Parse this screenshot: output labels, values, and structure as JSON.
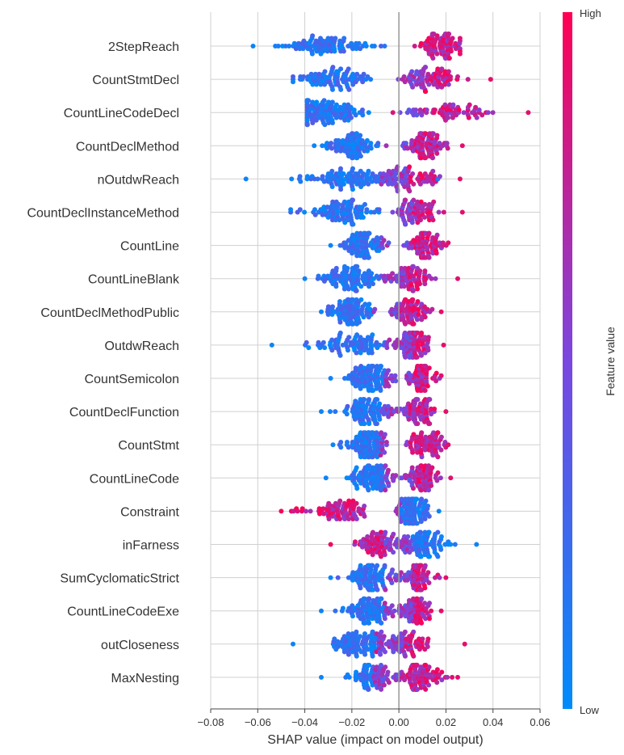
{
  "chart_data": {
    "type": "scatter",
    "subtype": "shap-beeswarm",
    "xlabel": "SHAP value (impact on model output)",
    "ylabel": "",
    "xlim": [
      -0.08,
      0.06
    ],
    "xticks": [
      -0.08,
      -0.06,
      -0.04,
      -0.02,
      0.0,
      0.02,
      0.04,
      0.06
    ],
    "xtick_labels": [
      "−0.08",
      "−0.06",
      "−0.04",
      "−0.02",
      "0.00",
      "0.02",
      "0.04",
      "0.06"
    ],
    "grid": true,
    "colorbar": {
      "title": "Feature value",
      "high_label": "High",
      "low_label": "Low",
      "high_color": "#ff0052",
      "low_color": "#008bfb",
      "placement": "right"
    },
    "features": [
      {
        "name": "2StepReach",
        "min": -0.062,
        "max": 0.026,
        "low_side": "negative",
        "split": 0.0,
        "density_center_low": -0.03,
        "density_center_high": 0.018
      },
      {
        "name": "CountStmtDecl",
        "min": -0.045,
        "max": 0.039,
        "low_side": "negative",
        "split": 0.005,
        "density_center_low": -0.028,
        "density_center_high": 0.012
      },
      {
        "name": "CountLineCodeDecl",
        "min": -0.039,
        "max": 0.055,
        "low_side": "negative",
        "split": 0.005,
        "density_center_low": -0.03,
        "density_center_high": 0.02
      },
      {
        "name": "CountDeclMethod",
        "min": -0.036,
        "max": 0.027,
        "low_side": "negative",
        "split": -0.002,
        "density_center_low": -0.02,
        "density_center_high": 0.012
      },
      {
        "name": "nOutdwReach",
        "min": -0.065,
        "max": 0.026,
        "low_side": "negative",
        "split": -0.002,
        "density_center_low": -0.02,
        "density_center_high": 0.006
      },
      {
        "name": "CountDeclInstanceMethod",
        "min": -0.046,
        "max": 0.027,
        "low_side": "negative",
        "split": 0.0,
        "density_center_low": -0.025,
        "density_center_high": 0.007
      },
      {
        "name": "CountLine",
        "min": -0.029,
        "max": 0.021,
        "low_side": "negative",
        "split": -0.002,
        "density_center_low": -0.015,
        "density_center_high": 0.012
      },
      {
        "name": "CountLineBlank",
        "min": -0.04,
        "max": 0.025,
        "low_side": "negative",
        "split": -0.002,
        "density_center_low": -0.02,
        "density_center_high": 0.005
      },
      {
        "name": "CountDeclMethodPublic",
        "min": -0.033,
        "max": 0.018,
        "low_side": "negative",
        "split": -0.005,
        "density_center_low": -0.02,
        "density_center_high": 0.005
      },
      {
        "name": "OutdwReach",
        "min": -0.054,
        "max": 0.019,
        "low_side": "negative",
        "split": 0.0,
        "density_center_low": -0.02,
        "density_center_high": 0.006
      },
      {
        "name": "CountSemicolon",
        "min": -0.029,
        "max": 0.018,
        "low_side": "negative",
        "split": 0.0,
        "density_center_low": -0.012,
        "density_center_high": 0.01
      },
      {
        "name": "CountDeclFunction",
        "min": -0.033,
        "max": 0.02,
        "low_side": "negative",
        "split": -0.002,
        "density_center_low": -0.013,
        "density_center_high": 0.008
      },
      {
        "name": "CountStmt",
        "min": -0.028,
        "max": 0.021,
        "low_side": "negative",
        "split": -0.002,
        "density_center_low": -0.013,
        "density_center_high": 0.012
      },
      {
        "name": "CountLineCode",
        "min": -0.031,
        "max": 0.022,
        "low_side": "negative",
        "split": 0.0,
        "density_center_low": -0.012,
        "density_center_high": 0.01
      },
      {
        "name": "Constraint",
        "min": -0.05,
        "max": 0.017,
        "low_side": "positive",
        "split": -0.005,
        "density_center_low": 0.006,
        "density_center_high": -0.025
      },
      {
        "name": "inFarness",
        "min": -0.029,
        "max": 0.033,
        "low_side": "positive",
        "split": 0.0,
        "density_center_low": 0.01,
        "density_center_high": -0.008
      },
      {
        "name": "SumCyclomaticStrict",
        "min": -0.029,
        "max": 0.02,
        "low_side": "negative",
        "split": 0.0,
        "density_center_low": -0.012,
        "density_center_high": 0.008
      },
      {
        "name": "CountLineCodeExe",
        "min": -0.033,
        "max": 0.018,
        "low_side": "negative",
        "split": 0.0,
        "density_center_low": -0.012,
        "density_center_high": 0.007
      },
      {
        "name": "outCloseness",
        "min": -0.045,
        "max": 0.028,
        "low_side": "negative",
        "split": -0.003,
        "density_center_low": -0.015,
        "density_center_high": 0.003
      },
      {
        "name": "MaxNesting",
        "min": -0.033,
        "max": 0.025,
        "low_side": "negative",
        "split": -0.005,
        "density_center_low": -0.01,
        "density_center_high": 0.01
      }
    ]
  }
}
